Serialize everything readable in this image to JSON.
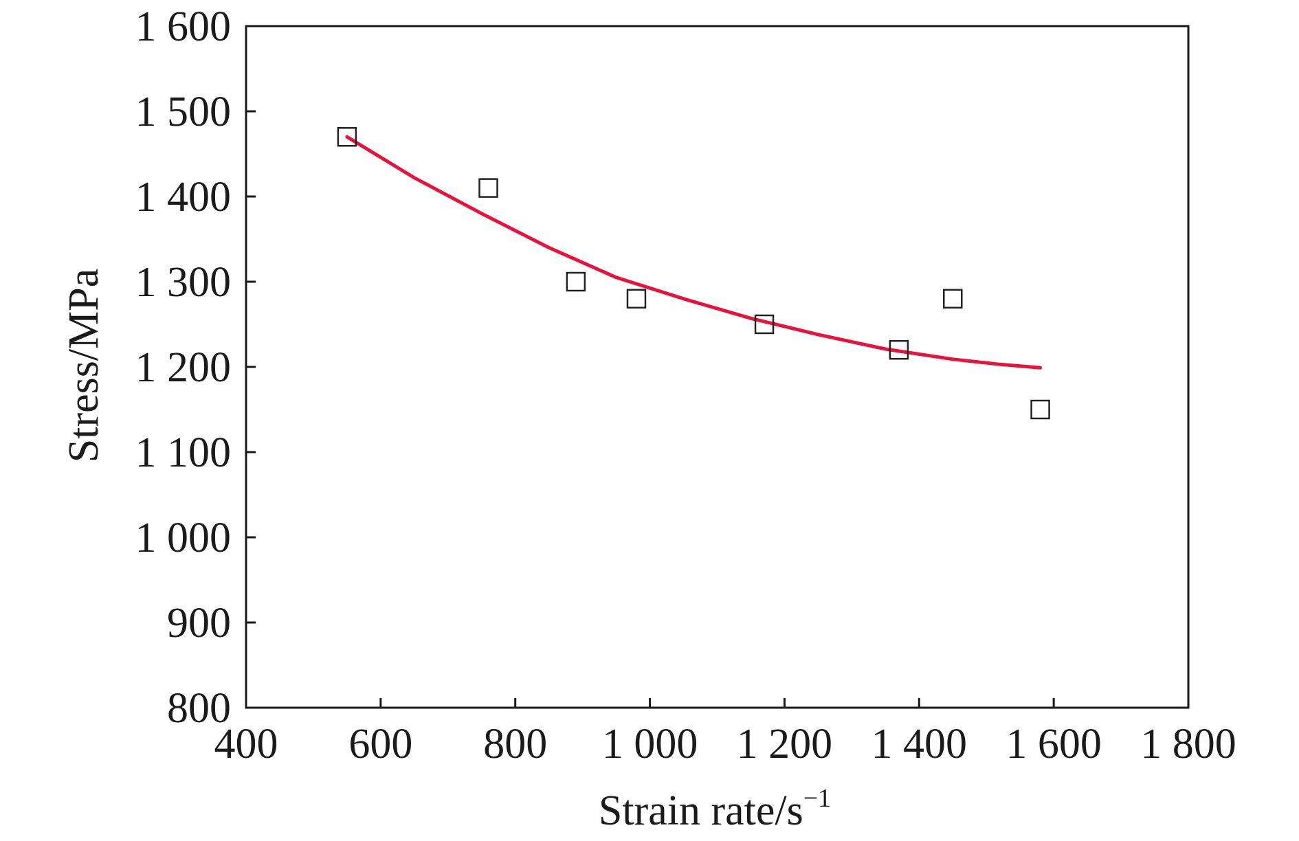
{
  "chart_data": {
    "type": "scatter",
    "title": "",
    "xlabel": "Strain rate/s",
    "xlabel_superscript": "−1",
    "ylabel": "Stress/MPa",
    "xlim": [
      400,
      1800
    ],
    "ylim": [
      800,
      1600
    ],
    "x_ticks": [
      400,
      600,
      800,
      1000,
      1200,
      1400,
      1600,
      1800
    ],
    "x_tick_labels": [
      "400",
      "600",
      "800",
      "1 000",
      "1 200",
      "1 400",
      "1 600",
      "1 800"
    ],
    "y_ticks": [
      800,
      900,
      1000,
      1100,
      1200,
      1300,
      1400,
      1500,
      1600
    ],
    "y_tick_labels": [
      "800",
      "900",
      "1 000",
      "1 100",
      "1 200",
      "1 300",
      "1 400",
      "1 500",
      "1 600"
    ],
    "grid": false,
    "series": [
      {
        "type": "scatter",
        "marker": "open-square",
        "color": "#222222",
        "points": [
          {
            "x": 550,
            "y": 1470
          },
          {
            "x": 760,
            "y": 1410
          },
          {
            "x": 890,
            "y": 1300
          },
          {
            "x": 980,
            "y": 1280
          },
          {
            "x": 1170,
            "y": 1250
          },
          {
            "x": 1370,
            "y": 1220
          },
          {
            "x": 1450,
            "y": 1280
          },
          {
            "x": 1580,
            "y": 1150
          }
        ]
      },
      {
        "type": "line",
        "color": "#e8133c",
        "points": [
          {
            "x": 550,
            "y": 1470
          },
          {
            "x": 650,
            "y": 1422
          },
          {
            "x": 750,
            "y": 1380
          },
          {
            "x": 850,
            "y": 1340
          },
          {
            "x": 950,
            "y": 1305
          },
          {
            "x": 1050,
            "y": 1280
          },
          {
            "x": 1150,
            "y": 1257
          },
          {
            "x": 1250,
            "y": 1238
          },
          {
            "x": 1350,
            "y": 1221
          },
          {
            "x": 1450,
            "y": 1209
          },
          {
            "x": 1520,
            "y": 1203
          },
          {
            "x": 1580,
            "y": 1199
          }
        ]
      }
    ]
  }
}
